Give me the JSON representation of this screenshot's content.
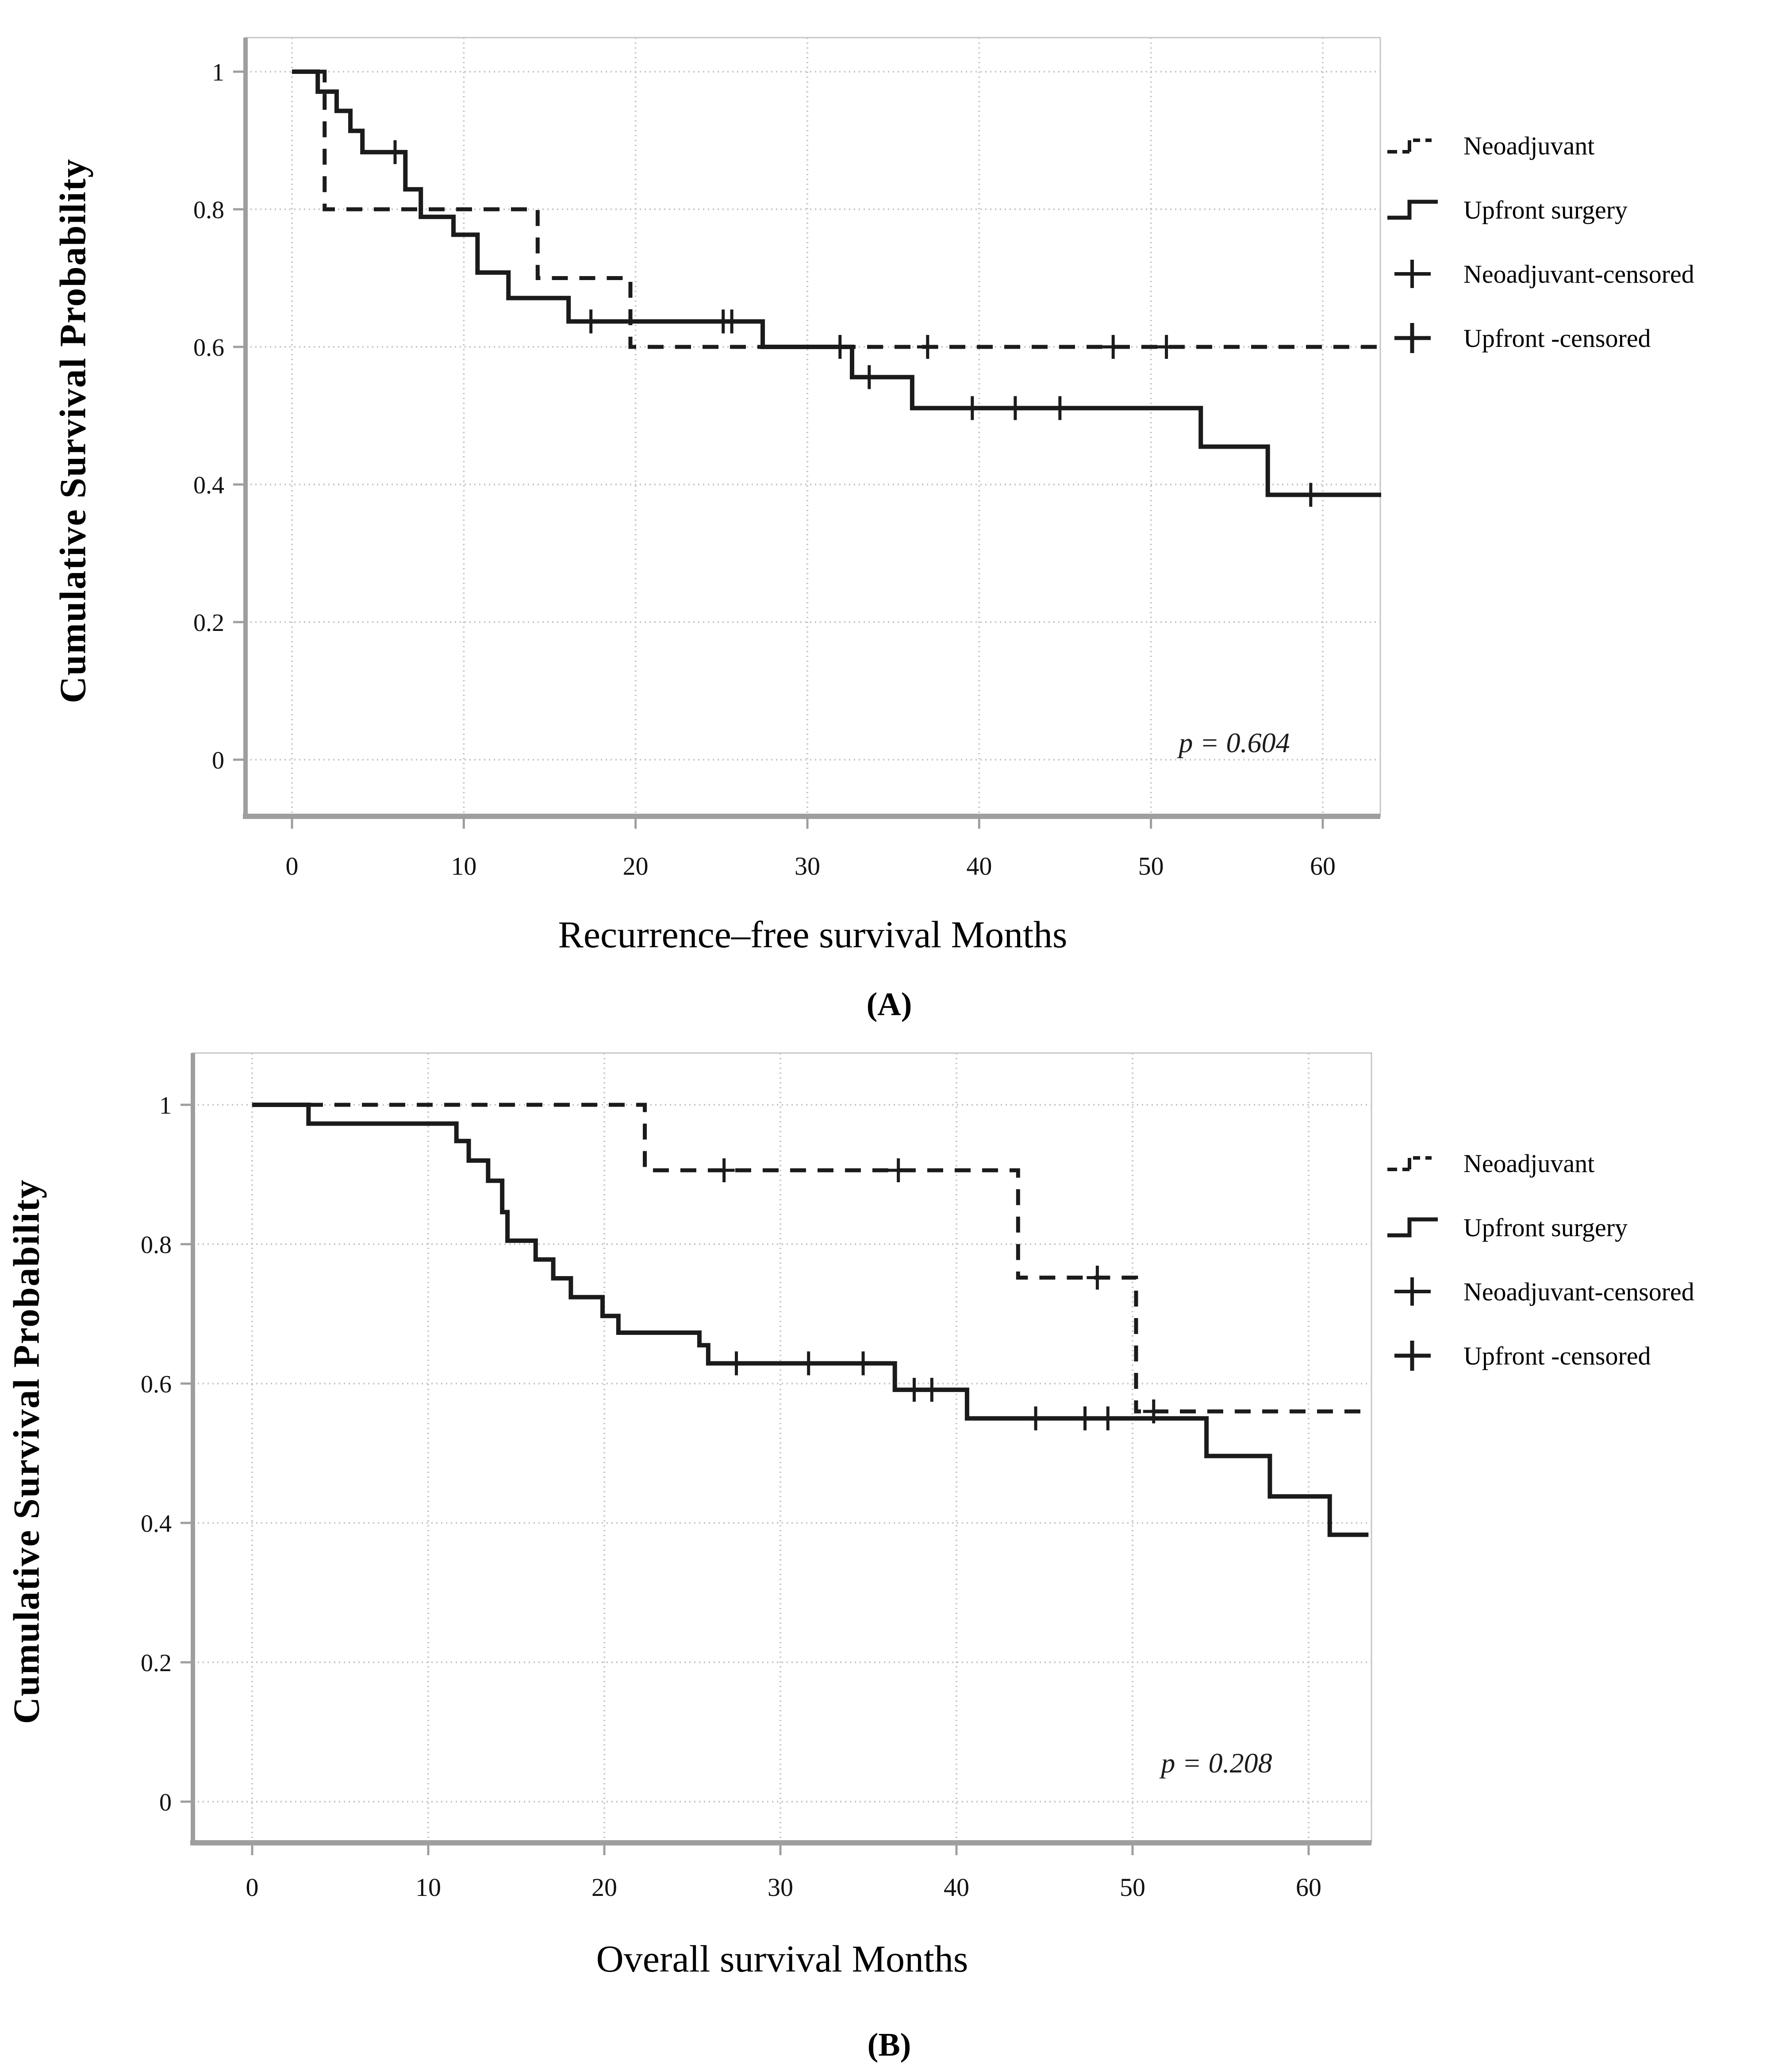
{
  "page": {
    "background": "#ffffff"
  },
  "colors": {
    "curve": "#1b1b1b",
    "grid": "#c6c6c6",
    "frame": "#c6c6c6",
    "axis": "#9e9e9e",
    "text": "#000000"
  },
  "legend": {
    "items": [
      {
        "label": "Neoadjuvant",
        "icon": "dashed-step-line-icon"
      },
      {
        "label": "Upfront surgery",
        "icon": "solid-step-line-icon"
      },
      {
        "label": "Neoadjuvant-censored",
        "icon": "plus-icon"
      },
      {
        "label": "Upfront -censored",
        "icon": "plus-icon"
      }
    ]
  },
  "chart_data": [
    {
      "type": "line",
      "subtype": "kaplan_meier_step",
      "panel_label": "(A)",
      "xlabel": "Recurrence–free survival Months",
      "ylabel": "Cumulative Survival Probability",
      "annotation": "p = 0.604",
      "xlim": [
        0,
        63.4
      ],
      "ylim": [
        0,
        1
      ],
      "x_ticks": [
        0,
        10,
        20,
        30,
        40,
        50,
        60
      ],
      "y_ticks": [
        1,
        0.8,
        0.6,
        0.4,
        0.2,
        0
      ],
      "y_tick_labels": [
        "1",
        "0.8",
        "0.6",
        "0.4",
        "0.2",
        "0"
      ],
      "grid": true,
      "legend_position": "outside-upper-right",
      "series": [
        {
          "name": "Neoadjuvant",
          "line_style": "dashed",
          "steps": [
            [
              0,
              1.0
            ],
            [
              1.9,
              0.8
            ],
            [
              14.3,
              0.7
            ],
            [
              19.7,
              0.6
            ],
            [
              63.4,
              0.6
            ]
          ],
          "censored": [
            [
              37.0,
              0.6
            ],
            [
              47.8,
              0.6
            ],
            [
              50.9,
              0.6
            ]
          ]
        },
        {
          "name": "Upfront surgery",
          "line_style": "solid",
          "steps": [
            [
              0,
              1.0
            ],
            [
              1.5,
              0.971
            ],
            [
              2.6,
              0.943
            ],
            [
              3.4,
              0.914
            ],
            [
              4.1,
              0.883
            ],
            [
              6.6,
              0.829
            ],
            [
              7.5,
              0.789
            ],
            [
              9.4,
              0.763
            ],
            [
              10.8,
              0.708
            ],
            [
              12.6,
              0.671
            ],
            [
              16.1,
              0.637
            ],
            [
              27.4,
              0.6
            ],
            [
              32.6,
              0.556
            ],
            [
              36.1,
              0.511
            ],
            [
              52.9,
              0.455
            ],
            [
              56.8,
              0.385
            ],
            [
              63.4,
              0.385
            ]
          ],
          "censored": [
            [
              6.0,
              0.883
            ],
            [
              17.4,
              0.637
            ],
            [
              25.1,
              0.637
            ],
            [
              25.6,
              0.637
            ],
            [
              31.9,
              0.6
            ],
            [
              33.6,
              0.556
            ],
            [
              39.6,
              0.511
            ],
            [
              42.1,
              0.511
            ],
            [
              44.7,
              0.511
            ],
            [
              59.3,
              0.385
            ]
          ]
        }
      ]
    },
    {
      "type": "line",
      "subtype": "kaplan_meier_step",
      "panel_label": "(B)",
      "xlabel": "Overall survival Months",
      "ylabel": "Cumulative Survival Probability",
      "annotation": "p = 0.208",
      "xlim": [
        0,
        63.4
      ],
      "ylim": [
        0,
        1
      ],
      "x_ticks": [
        0,
        10,
        20,
        30,
        40,
        50,
        60
      ],
      "y_ticks": [
        1,
        0.8,
        0.6,
        0.4,
        0.2,
        0
      ],
      "y_tick_labels": [
        "1",
        "0.8",
        "0.6",
        "0.4",
        "0.2",
        "0"
      ],
      "grid": true,
      "legend_position": "outside-upper-right",
      "series": [
        {
          "name": "Neoadjuvant",
          "line_style": "dashed",
          "steps": [
            [
              0,
              1.0
            ],
            [
              22.3,
              0.906
            ],
            [
              43.5,
              0.752
            ],
            [
              50.2,
              0.56
            ],
            [
              63.4,
              0.56
            ]
          ],
          "censored": [
            [
              26.8,
              0.906
            ],
            [
              36.7,
              0.906
            ],
            [
              48.0,
              0.752
            ],
            [
              51.2,
              0.56
            ]
          ]
        },
        {
          "name": "Upfront surgery",
          "line_style": "solid",
          "steps": [
            [
              0,
              1.0
            ],
            [
              3.2,
              0.973
            ],
            [
              11.6,
              0.948
            ],
            [
              12.3,
              0.92
            ],
            [
              13.4,
              0.891
            ],
            [
              14.2,
              0.846
            ],
            [
              14.5,
              0.805
            ],
            [
              16.1,
              0.778
            ],
            [
              17.1,
              0.751
            ],
            [
              18.1,
              0.724
            ],
            [
              19.9,
              0.697
            ],
            [
              20.8,
              0.673
            ],
            [
              25.4,
              0.655
            ],
            [
              25.9,
              0.629
            ],
            [
              36.5,
              0.591
            ],
            [
              40.6,
              0.55
            ],
            [
              54.2,
              0.496
            ],
            [
              57.8,
              0.438
            ],
            [
              61.2,
              0.383
            ],
            [
              63.4,
              0.383
            ]
          ],
          "censored": [
            [
              27.5,
              0.629
            ],
            [
              31.6,
              0.629
            ],
            [
              34.7,
              0.629
            ],
            [
              37.6,
              0.591
            ],
            [
              38.6,
              0.591
            ],
            [
              44.5,
              0.55
            ],
            [
              47.3,
              0.55
            ],
            [
              48.6,
              0.55
            ]
          ]
        }
      ]
    }
  ]
}
